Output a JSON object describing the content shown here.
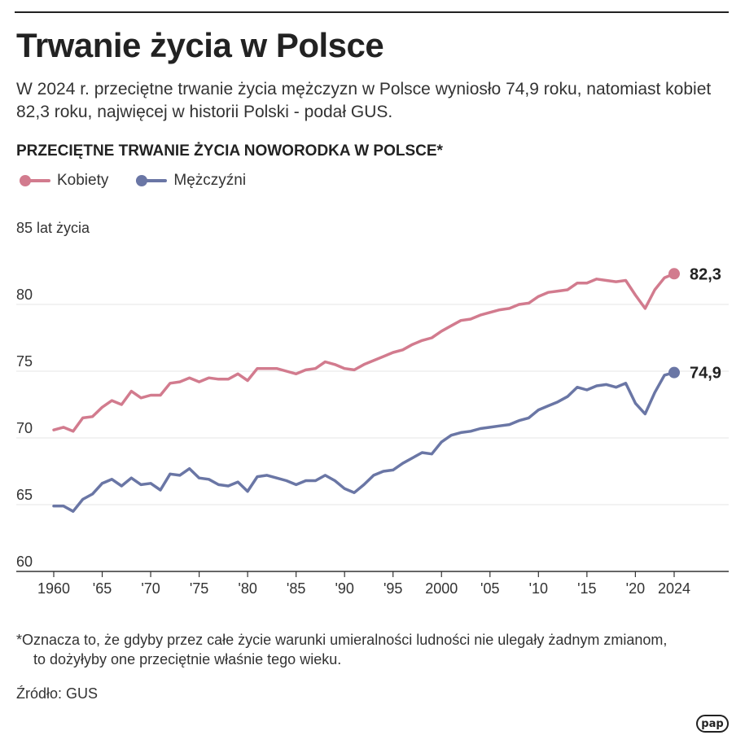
{
  "header": {
    "title": "Trwanie życia w Polsce",
    "subtitle": "W 2024 r. przeciętne trwanie życia mężczyzn w Polsce wyniosło 74,9 roku, natomiast kobiet 82,3 roku, najwięcej w historii Polski - podał GUS."
  },
  "chart_data": {
    "type": "line",
    "title": "PRZECIĘTNE TRWANIE ŻYCIA NOWORODKA W POLSCE*",
    "ylabel": "85 lat życia",
    "xlabel": "",
    "ylim": [
      60,
      85
    ],
    "xlim": [
      1958,
      2028
    ],
    "y_ticks": [
      {
        "value": 60,
        "label": "60"
      },
      {
        "value": 65,
        "label": "65"
      },
      {
        "value": 70,
        "label": "70"
      },
      {
        "value": 75,
        "label": "75"
      },
      {
        "value": 80,
        "label": "80"
      }
    ],
    "x_ticks": [
      {
        "value": 1960,
        "label": "1960"
      },
      {
        "value": 1965,
        "label": "'65"
      },
      {
        "value": 1970,
        "label": "'70"
      },
      {
        "value": 1975,
        "label": "'75"
      },
      {
        "value": 1980,
        "label": "'80"
      },
      {
        "value": 1985,
        "label": "'85"
      },
      {
        "value": 1990,
        "label": "'90"
      },
      {
        "value": 1995,
        "label": "'95"
      },
      {
        "value": 2000,
        "label": "2000"
      },
      {
        "value": 2005,
        "label": "'05"
      },
      {
        "value": 2010,
        "label": "'10"
      },
      {
        "value": 2015,
        "label": "'15"
      },
      {
        "value": 2020,
        "label": "'20"
      },
      {
        "value": 2024,
        "label": "2024"
      }
    ],
    "x": [
      1960,
      1961,
      1962,
      1963,
      1964,
      1965,
      1966,
      1967,
      1968,
      1969,
      1970,
      1971,
      1972,
      1973,
      1974,
      1975,
      1976,
      1977,
      1978,
      1979,
      1980,
      1981,
      1982,
      1983,
      1984,
      1985,
      1986,
      1987,
      1988,
      1989,
      1990,
      1991,
      1992,
      1993,
      1994,
      1995,
      1996,
      1997,
      1998,
      1999,
      2000,
      2001,
      2002,
      2003,
      2004,
      2005,
      2006,
      2007,
      2008,
      2009,
      2010,
      2011,
      2012,
      2013,
      2014,
      2015,
      2016,
      2017,
      2018,
      2019,
      2020,
      2021,
      2022,
      2023,
      2024
    ],
    "series": [
      {
        "name": "Kobiety",
        "color": "#d27b8e",
        "values": [
          70.6,
          70.8,
          70.5,
          71.5,
          71.6,
          72.3,
          72.8,
          72.5,
          73.5,
          73.0,
          73.2,
          73.2,
          74.1,
          74.2,
          74.5,
          74.2,
          74.5,
          74.4,
          74.4,
          74.8,
          74.3,
          75.2,
          75.2,
          75.2,
          75.0,
          74.8,
          75.1,
          75.2,
          75.7,
          75.5,
          75.2,
          75.1,
          75.5,
          75.8,
          76.1,
          76.4,
          76.6,
          77.0,
          77.3,
          77.5,
          78.0,
          78.4,
          78.8,
          78.9,
          79.2,
          79.4,
          79.6,
          79.7,
          80.0,
          80.1,
          80.6,
          80.9,
          81.0,
          81.1,
          81.6,
          81.6,
          81.9,
          81.8,
          81.7,
          81.8,
          80.7,
          79.7,
          81.1,
          82.0,
          82.3
        ]
      },
      {
        "name": "Mężczyźni",
        "color": "#6a76a5",
        "values": [
          64.9,
          64.9,
          64.5,
          65.4,
          65.8,
          66.6,
          66.9,
          66.4,
          67.0,
          66.5,
          66.6,
          66.1,
          67.3,
          67.2,
          67.7,
          67.0,
          66.9,
          66.5,
          66.4,
          66.7,
          66.0,
          67.1,
          67.2,
          67.0,
          66.8,
          66.5,
          66.8,
          66.8,
          67.2,
          66.8,
          66.2,
          65.9,
          66.5,
          67.2,
          67.5,
          67.6,
          68.1,
          68.5,
          68.9,
          68.8,
          69.7,
          70.2,
          70.4,
          70.5,
          70.7,
          70.8,
          70.9,
          71.0,
          71.3,
          71.5,
          72.1,
          72.4,
          72.7,
          73.1,
          73.8,
          73.6,
          73.9,
          74.0,
          73.8,
          74.1,
          72.6,
          71.8,
          73.4,
          74.7,
          74.9
        ]
      }
    ],
    "end_labels": [
      "82,3",
      "74,9"
    ]
  },
  "footnote": {
    "line1": "*Oznacza to, że gdyby przez całe życie warunki umieralności ludności nie ulegały żadnym zmianom,",
    "line2": "to dożyłyby one przeciętnie właśnie tego wieku."
  },
  "source": "Źródło: GUS",
  "logo_text": "pap"
}
